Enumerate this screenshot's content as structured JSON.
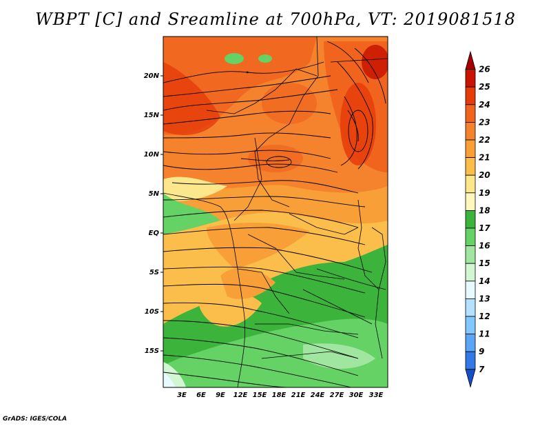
{
  "title": "WBPT [C] and Sreamline at 700hPa, VT: 2019081518",
  "footer": "GrADS: IGES/COLA",
  "map": {
    "lon_labels": [
      "3E",
      "6E",
      "9E",
      "12E",
      "15E",
      "18E",
      "21E",
      "24E",
      "27E",
      "30E",
      "33E"
    ],
    "lat_labels": [
      "20N",
      "15N",
      "10N",
      "5N",
      "EQ",
      "5S",
      "10S",
      "15S"
    ],
    "field": "wet-bulb potential temperature (C) shaded, 700hPa streamlines",
    "region": "Central/West Africa, approx 0E-35E, 20S-24N"
  },
  "colorbar": {
    "labels": [
      "26",
      "25",
      "24",
      "23",
      "22",
      "21",
      "20",
      "19",
      "18",
      "17",
      "16",
      "15",
      "14",
      "13",
      "12",
      "11",
      "9",
      "7"
    ],
    "colors": [
      "#a50000",
      "#c81400",
      "#e63c0a",
      "#f0641e",
      "#f5822d",
      "#f8a037",
      "#fbbe4b",
      "#fde78c",
      "#fff7be",
      "#3cb43c",
      "#64d264",
      "#a0e6a0",
      "#d2f5d2",
      "#e6faff",
      "#b4e1ff",
      "#82c8ff",
      "#5aa5f5",
      "#3278e6",
      "#1450c8"
    ]
  },
  "colors": {
    "outline": "#000000"
  }
}
